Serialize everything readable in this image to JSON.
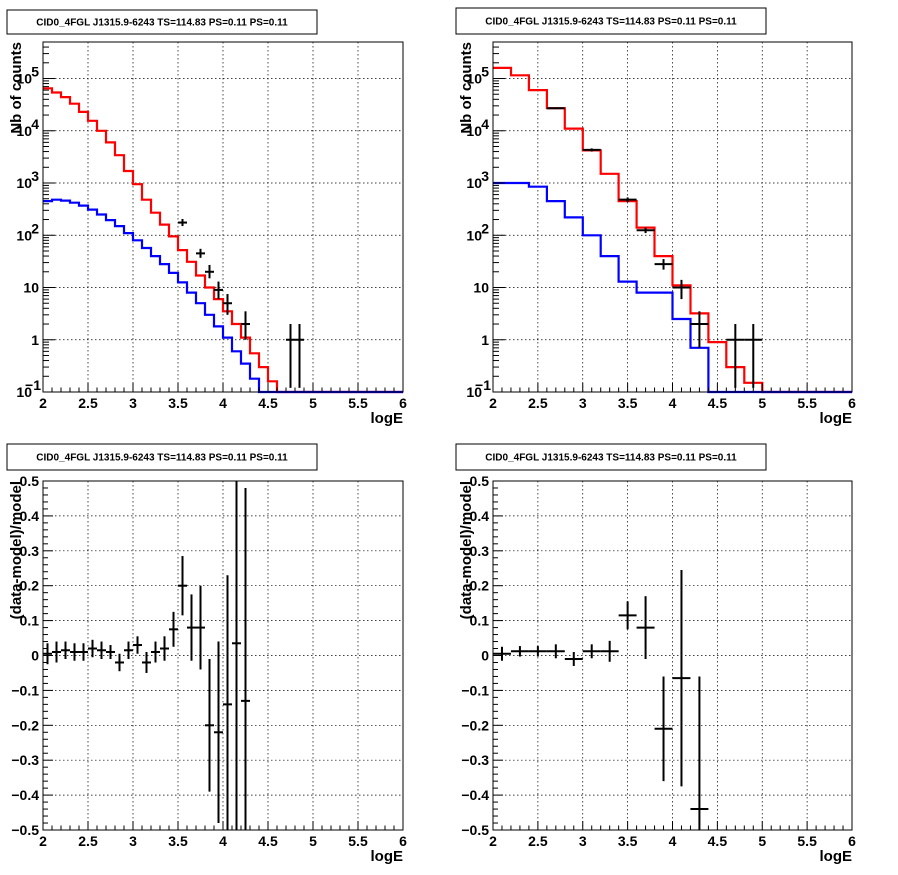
{
  "chart_data": [
    {
      "type": "line",
      "title": "CID0_4FGL J1315.9-6243 TS=114.83 PS=0.11 PS=0.11",
      "xlabel": "logE",
      "ylabel": "Nb of counts",
      "xlim": [
        2,
        6
      ],
      "ylim": [
        0.1,
        500000
      ],
      "ylog": true,
      "grid": true,
      "xticks": [
        "2",
        "2.5",
        "3",
        "3.5",
        "4",
        "4.5",
        "5",
        "5.5",
        "6"
      ],
      "yticks": [
        {
          "v": 0.1,
          "main": "10",
          "sup": "−1"
        },
        {
          "v": 1,
          "main": "1",
          "sup": ""
        },
        {
          "v": 10,
          "main": "10",
          "sup": ""
        },
        {
          "v": 100,
          "main": "10",
          "sup": "2"
        },
        {
          "v": 1000,
          "main": "10",
          "sup": "3"
        },
        {
          "v": 10000,
          "main": "10",
          "sup": "4"
        },
        {
          "v": 100000,
          "main": "10",
          "sup": "5"
        }
      ],
      "bin_edges": [
        2,
        2.1,
        2.2,
        2.3,
        2.4,
        2.5,
        2.6,
        2.7,
        2.8,
        2.9,
        3.0,
        3.1,
        3.2,
        3.3,
        3.4,
        3.5,
        3.6,
        3.7,
        3.8,
        3.9,
        4.0,
        4.1,
        4.2,
        4.3,
        4.4,
        4.5,
        4.6,
        4.7,
        4.8,
        4.9,
        5.0,
        5.1,
        5.2,
        5.3,
        5.4,
        5.5,
        5.6,
        5.7,
        5.8,
        5.9,
        6.0
      ],
      "series": [
        {
          "color": "#ff0000",
          "values": [
            65000,
            54000,
            44000,
            33000,
            23000,
            15500,
            10000,
            6000,
            3400,
            1700,
            950,
            480,
            270,
            160,
            95,
            52,
            31,
            17,
            10,
            6,
            3.5,
            2,
            1.1,
            0.55,
            0.3,
            0.16,
            0.09,
            0.07,
            0.1,
            0.1,
            0.1,
            0.1,
            0.1,
            0.1,
            0.1,
            0.1,
            0.1,
            0.1,
            0.1,
            0.1
          ]
        },
        {
          "color": "#0000ff",
          "values": [
            450,
            480,
            460,
            420,
            370,
            310,
            250,
            195,
            150,
            110,
            80,
            57,
            40,
            28,
            19,
            12.5,
            8,
            5,
            3,
            1.8,
            1.1,
            0.6,
            0.35,
            0.18,
            0.1,
            0.1,
            0.1,
            0.1,
            0.1,
            0.1,
            0.1,
            0.1,
            0.1,
            0.1,
            0.1,
            0.1,
            0.1,
            0.1,
            0.1,
            0.1
          ]
        }
      ],
      "points": [
        {
          "x": 3.55,
          "y": 175,
          "lo": 150,
          "hi": 205,
          "xerr": 0.05
        },
        {
          "x": 3.75,
          "y": 45,
          "lo": 37,
          "hi": 55,
          "xerr": 0.05
        },
        {
          "x": 3.85,
          "y": 20,
          "lo": 15,
          "hi": 27,
          "xerr": 0.05
        },
        {
          "x": 3.95,
          "y": 9,
          "lo": 6,
          "hi": 13,
          "xerr": 0.05
        },
        {
          "x": 4.05,
          "y": 5,
          "lo": 3,
          "hi": 7.5,
          "xerr": 0.05
        },
        {
          "x": 4.25,
          "y": 2,
          "lo": 1,
          "hi": 3.5,
          "xerr": 0.05
        },
        {
          "x": 4.75,
          "y": 1,
          "lo": 0.12,
          "hi": 2,
          "xerr": 0.05
        },
        {
          "x": 4.85,
          "y": 1,
          "lo": 0.12,
          "hi": 2,
          "xerr": 0.05
        }
      ]
    },
    {
      "type": "line",
      "title": "CID0_4FGL J1315.9-6243 TS=114.83 PS=0.11 PS=0.11",
      "xlabel": "logE",
      "ylabel": "Nb of counts",
      "xlim": [
        2,
        6
      ],
      "ylim": [
        0.1,
        500000
      ],
      "ylog": true,
      "grid": true,
      "xticks": [
        "2",
        "2.5",
        "3",
        "3.5",
        "4",
        "4.5",
        "5",
        "5.5",
        "6"
      ],
      "yticks": [
        {
          "v": 0.1,
          "main": "10",
          "sup": "−1"
        },
        {
          "v": 1,
          "main": "1",
          "sup": ""
        },
        {
          "v": 10,
          "main": "10",
          "sup": ""
        },
        {
          "v": 100,
          "main": "10",
          "sup": "2"
        },
        {
          "v": 1000,
          "main": "10",
          "sup": "3"
        },
        {
          "v": 10000,
          "main": "10",
          "sup": "4"
        },
        {
          "v": 100000,
          "main": "10",
          "sup": "5"
        }
      ],
      "bin_edges": [
        2,
        2.2,
        2.4,
        2.6,
        2.8,
        3.0,
        3.2,
        3.4,
        3.6,
        3.8,
        4.0,
        4.2,
        4.4,
        4.6,
        4.8,
        5.0,
        5.2,
        5.4,
        5.6,
        5.8,
        6.0
      ],
      "series": [
        {
          "color": "#ff0000",
          "values": [
            160000,
            115000,
            60000,
            27000,
            11000,
            4200,
            1500,
            450,
            140,
            40,
            11,
            3.2,
            0.9,
            0.3,
            0.15,
            0.1,
            0.1,
            0.1,
            0.1,
            0.1
          ]
        },
        {
          "color": "#0000ff",
          "values": [
            1000,
            1000,
            850,
            450,
            220,
            100,
            40,
            13,
            8,
            8,
            2.5,
            0.7,
            0.1,
            0.1,
            0.1,
            0.1,
            0.1,
            0.1,
            0.1,
            0.1
          ]
        }
      ],
      "points": [
        {
          "x": 2.7,
          "y": 27000,
          "lo": 26000,
          "hi": 28000,
          "xerr": 0.1
        },
        {
          "x": 3.1,
          "y": 4300,
          "lo": 4000,
          "hi": 4600,
          "xerr": 0.1
        },
        {
          "x": 3.5,
          "y": 480,
          "lo": 430,
          "hi": 530,
          "xerr": 0.1
        },
        {
          "x": 3.7,
          "y": 125,
          "lo": 110,
          "hi": 140,
          "xerr": 0.1
        },
        {
          "x": 3.9,
          "y": 28,
          "lo": 22,
          "hi": 35,
          "xerr": 0.1
        },
        {
          "x": 4.1,
          "y": 10,
          "lo": 6,
          "hi": 14,
          "xerr": 0.1
        },
        {
          "x": 4.3,
          "y": 2,
          "lo": 0.7,
          "hi": 3.5,
          "xerr": 0.1
        },
        {
          "x": 4.7,
          "y": 1,
          "lo": 0.12,
          "hi": 2,
          "xerr": 0.1
        },
        {
          "x": 4.9,
          "y": 1,
          "lo": 0.12,
          "hi": 2,
          "xerr": 0.1
        }
      ]
    },
    {
      "type": "scatter",
      "title": "CID0_4FGL J1315.9-6243 TS=114.83 PS=0.11 PS=0.11",
      "xlabel": "logE",
      "ylabel": "(data-model)/model",
      "xlim": [
        2,
        6
      ],
      "ylim": [
        -0.5,
        0.5
      ],
      "ylog": false,
      "grid": true,
      "xticks": [
        "2",
        "2.5",
        "3",
        "3.5",
        "4",
        "4.5",
        "5",
        "5.5",
        "6"
      ],
      "yticks": [
        {
          "v": -0.5,
          "main": "−0.5"
        },
        {
          "v": -0.4,
          "main": "−0.4"
        },
        {
          "v": -0.3,
          "main": "−0.3"
        },
        {
          "v": -0.2,
          "main": "−0.2"
        },
        {
          "v": -0.1,
          "main": "−0.1"
        },
        {
          "v": 0,
          "main": "0"
        },
        {
          "v": 0.1,
          "main": "0.1"
        },
        {
          "v": 0.2,
          "main": "0.2"
        },
        {
          "v": 0.3,
          "main": "0.3"
        },
        {
          "v": 0.4,
          "main": "0.4"
        },
        {
          "v": 0.5,
          "main": "0.5"
        }
      ],
      "points": [
        {
          "x": 2.05,
          "y": 0.005,
          "err": 0.03,
          "xerr": 0.05
        },
        {
          "x": 2.15,
          "y": 0.01,
          "err": 0.03,
          "xerr": 0.05
        },
        {
          "x": 2.25,
          "y": 0.015,
          "err": 0.025,
          "xerr": 0.05
        },
        {
          "x": 2.35,
          "y": 0.01,
          "err": 0.025,
          "xerr": 0.05
        },
        {
          "x": 2.45,
          "y": 0.01,
          "err": 0.025,
          "xerr": 0.05
        },
        {
          "x": 2.55,
          "y": 0.02,
          "err": 0.025,
          "xerr": 0.05
        },
        {
          "x": 2.65,
          "y": 0.015,
          "err": 0.025,
          "xerr": 0.05
        },
        {
          "x": 2.75,
          "y": 0.01,
          "err": 0.02,
          "xerr": 0.05
        },
        {
          "x": 2.85,
          "y": -0.02,
          "err": 0.025,
          "xerr": 0.05
        },
        {
          "x": 2.95,
          "y": 0.015,
          "err": 0.025,
          "xerr": 0.05
        },
        {
          "x": 3.05,
          "y": 0.03,
          "err": 0.025,
          "xerr": 0.05
        },
        {
          "x": 3.15,
          "y": -0.02,
          "err": 0.03,
          "xerr": 0.05
        },
        {
          "x": 3.25,
          "y": 0.01,
          "err": 0.03,
          "xerr": 0.05
        },
        {
          "x": 3.35,
          "y": 0.02,
          "err": 0.035,
          "xerr": 0.05
        },
        {
          "x": 3.45,
          "y": 0.075,
          "err": 0.05,
          "xerr": 0.05
        },
        {
          "x": 3.55,
          "y": 0.2,
          "err": 0.085,
          "xerr": 0.05
        },
        {
          "x": 3.65,
          "y": 0.08,
          "err": 0.095,
          "xerr": 0.05
        },
        {
          "x": 3.75,
          "y": 0.08,
          "err": 0.12,
          "xerr": 0.05
        },
        {
          "x": 3.85,
          "y": -0.2,
          "err": 0.19,
          "xerr": 0.05
        },
        {
          "x": 3.95,
          "y": -0.22,
          "err": 0.26,
          "xerr": 0.05
        },
        {
          "x": 4.05,
          "y": -0.14,
          "err": 0.37,
          "xerr": 0.05
        },
        {
          "x": 4.15,
          "y": 0.035,
          "err": 0.55,
          "xerr": 0.05
        },
        {
          "x": 4.25,
          "y": -0.13,
          "err": 0.61,
          "xerr": 0.05
        }
      ]
    },
    {
      "type": "scatter",
      "title": "CID0_4FGL J1315.9-6243 TS=114.83 PS=0.11 PS=0.11",
      "xlabel": "logE",
      "ylabel": "(data-model)/model",
      "xlim": [
        2,
        6
      ],
      "ylim": [
        -0.5,
        0.5
      ],
      "ylog": false,
      "grid": true,
      "xticks": [
        "2",
        "2.5",
        "3",
        "3.5",
        "4",
        "4.5",
        "5",
        "5.5",
        "6"
      ],
      "yticks": [
        {
          "v": -0.5,
          "main": "−0.5"
        },
        {
          "v": -0.4,
          "main": "−0.4"
        },
        {
          "v": -0.3,
          "main": "−0.3"
        },
        {
          "v": -0.2,
          "main": "−0.2"
        },
        {
          "v": -0.1,
          "main": "−0.1"
        },
        {
          "v": 0,
          "main": "0"
        },
        {
          "v": 0.1,
          "main": "0.1"
        },
        {
          "v": 0.2,
          "main": "0.2"
        },
        {
          "v": 0.3,
          "main": "0.3"
        },
        {
          "v": 0.4,
          "main": "0.4"
        },
        {
          "v": 0.5,
          "main": "0.5"
        }
      ],
      "points": [
        {
          "x": 2.1,
          "y": 0.005,
          "err": 0.02,
          "xerr": 0.1
        },
        {
          "x": 2.3,
          "y": 0.012,
          "err": 0.015,
          "xerr": 0.1
        },
        {
          "x": 2.5,
          "y": 0.012,
          "err": 0.015,
          "xerr": 0.1
        },
        {
          "x": 2.7,
          "y": 0.012,
          "err": 0.02,
          "xerr": 0.1
        },
        {
          "x": 2.9,
          "y": -0.01,
          "err": 0.02,
          "xerr": 0.1
        },
        {
          "x": 3.1,
          "y": 0.012,
          "err": 0.02,
          "xerr": 0.1
        },
        {
          "x": 3.3,
          "y": 0.012,
          "err": 0.03,
          "xerr": 0.1
        },
        {
          "x": 3.5,
          "y": 0.115,
          "err": 0.04,
          "xerr": 0.1
        },
        {
          "x": 3.7,
          "y": 0.08,
          "err": 0.09,
          "xerr": 0.1
        },
        {
          "x": 3.9,
          "y": -0.21,
          "err": 0.15,
          "xerr": 0.1
        },
        {
          "x": 4.1,
          "y": -0.065,
          "err": 0.31,
          "xerr": 0.1
        },
        {
          "x": 4.3,
          "y": -0.44,
          "err": 0.38,
          "xerr": 0.1
        }
      ]
    }
  ]
}
